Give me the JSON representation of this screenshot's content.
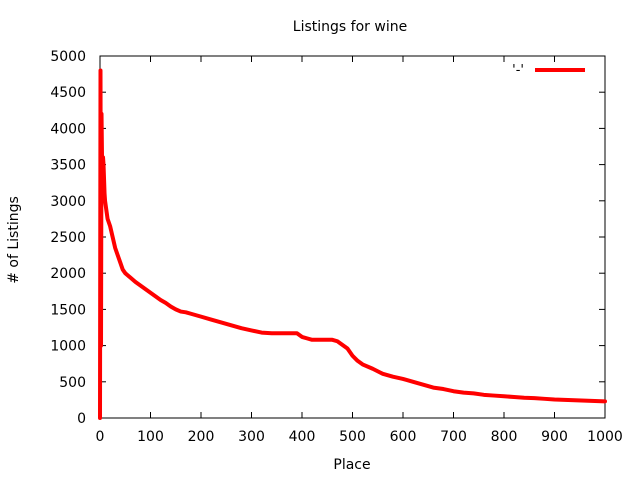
{
  "chart_data": {
    "type": "line",
    "title": "Listings for wine",
    "xlabel": "Place",
    "ylabel": "# of Listings",
    "xlim": [
      0,
      1000
    ],
    "ylim": [
      0,
      5000
    ],
    "x_ticks": [
      0,
      100,
      200,
      300,
      400,
      500,
      600,
      700,
      800,
      900,
      1000
    ],
    "y_ticks": [
      0,
      500,
      1000,
      1500,
      2000,
      2500,
      3000,
      3500,
      4000,
      4500,
      5000
    ],
    "grid": false,
    "legend_position": "top-right",
    "series": [
      {
        "name": "'-'",
        "color": "#ff0000",
        "x": [
          0,
          1,
          2,
          3,
          4,
          5,
          6,
          7,
          8,
          9,
          10,
          12,
          15,
          20,
          25,
          30,
          35,
          40,
          45,
          50,
          55,
          60,
          70,
          80,
          90,
          100,
          110,
          120,
          130,
          140,
          150,
          160,
          170,
          180,
          200,
          220,
          240,
          260,
          280,
          300,
          320,
          340,
          360,
          380,
          390,
          400,
          410,
          420,
          440,
          460,
          470,
          480,
          490,
          500,
          510,
          520,
          540,
          560,
          580,
          600,
          620,
          640,
          660,
          680,
          700,
          720,
          740,
          760,
          780,
          800,
          820,
          840,
          860,
          880,
          900,
          920,
          940,
          960,
          980,
          1000
        ],
        "y": [
          0,
          4800,
          1000,
          4200,
          3600,
          3200,
          3600,
          3500,
          3300,
          3100,
          3000,
          2900,
          2750,
          2650,
          2500,
          2350,
          2250,
          2150,
          2050,
          2000,
          1970,
          1940,
          1880,
          1830,
          1780,
          1730,
          1680,
          1630,
          1590,
          1540,
          1500,
          1470,
          1460,
          1440,
          1400,
          1360,
          1320,
          1280,
          1240,
          1210,
          1180,
          1170,
          1170,
          1170,
          1170,
          1120,
          1100,
          1080,
          1080,
          1080,
          1060,
          1010,
          960,
          860,
          790,
          740,
          680,
          610,
          570,
          540,
          500,
          460,
          420,
          400,
          370,
          350,
          340,
          320,
          310,
          300,
          290,
          280,
          275,
          265,
          255,
          250,
          245,
          240,
          235,
          230
        ]
      }
    ]
  }
}
